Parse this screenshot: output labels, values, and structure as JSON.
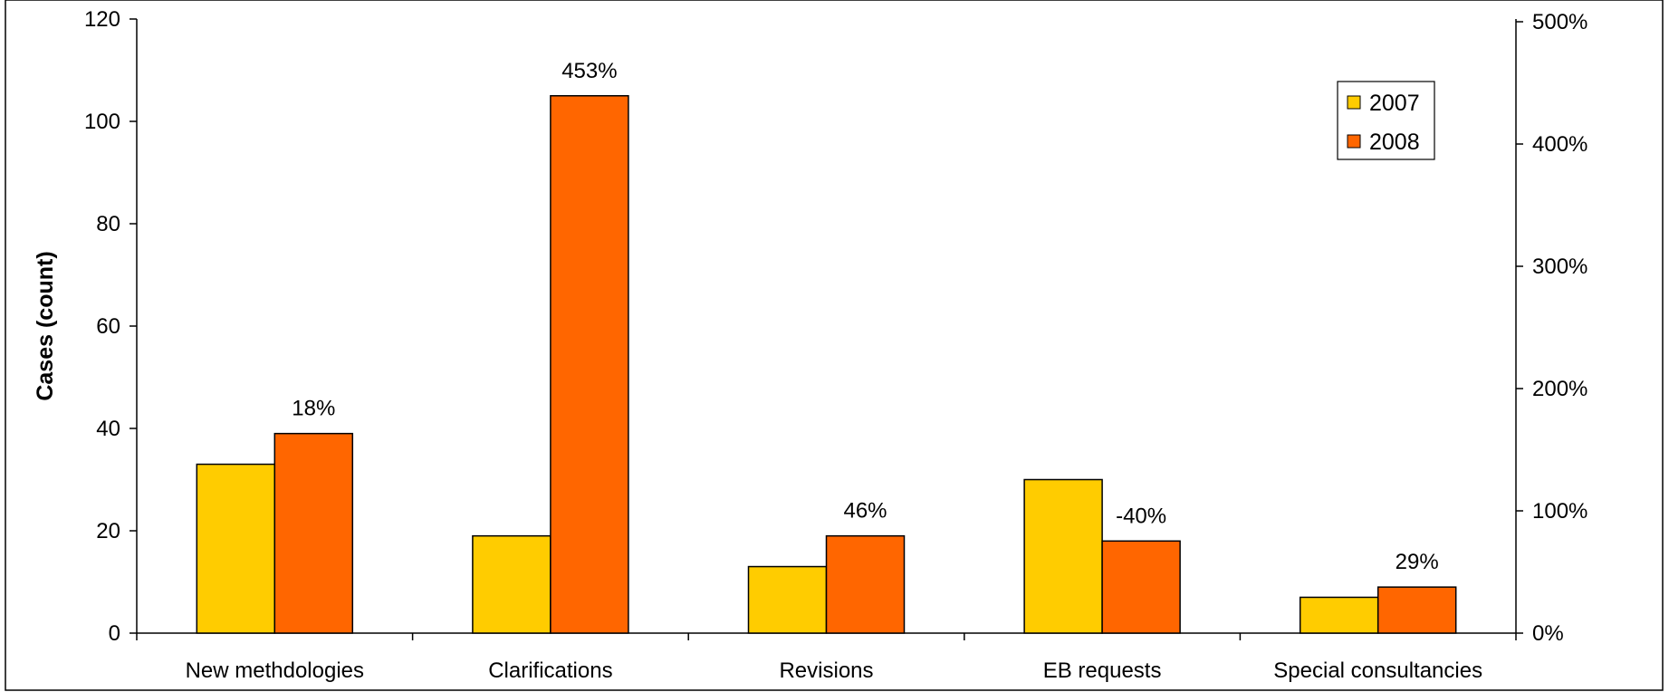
{
  "chart_data": {
    "type": "bar",
    "categories": [
      "New methdologies",
      "Clarifications",
      "Revisions",
      "EB requests",
      "Special consultancies"
    ],
    "series": [
      {
        "name": "2007",
        "values": [
          33,
          19,
          13,
          30,
          7
        ],
        "color": "#FFCC00"
      },
      {
        "name": "2008",
        "values": [
          39,
          105,
          19,
          18,
          9
        ],
        "color": "#FF6600"
      }
    ],
    "change_labels": [
      "18%",
      "453%",
      "46%",
      "-40%",
      "29%"
    ],
    "ylabel": "Cases (count)",
    "ylim": [
      0,
      120
    ],
    "yticks": [
      0,
      20,
      40,
      60,
      80,
      100,
      120
    ],
    "y2lim": [
      0,
      5
    ],
    "y2ticks": [
      "0%",
      "100%",
      "200%",
      "300%",
      "400%",
      "500%"
    ],
    "legend_position": "top-right",
    "grid": false
  }
}
